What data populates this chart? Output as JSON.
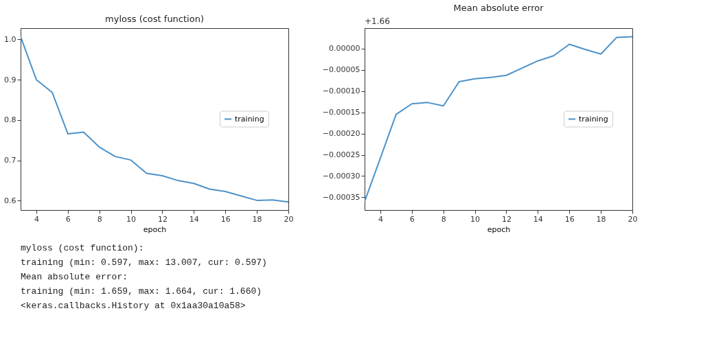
{
  "chart_data": [
    {
      "type": "line",
      "title": "myloss (cost function)",
      "xlabel": "epoch",
      "x": [
        3,
        4,
        5,
        6,
        7,
        8,
        9,
        10,
        11,
        12,
        13,
        14,
        15,
        16,
        17,
        18,
        19,
        20
      ],
      "series": [
        {
          "name": "training",
          "color": "#4c92c9",
          "values": [
            1.007,
            0.9,
            0.869,
            0.766,
            0.77,
            0.733,
            0.71,
            0.701,
            0.668,
            0.662,
            0.65,
            0.643,
            0.629,
            0.623,
            0.612,
            0.601,
            0.602,
            0.597
          ]
        }
      ],
      "xlim": [
        3,
        20
      ],
      "xticks": [
        4,
        6,
        8,
        10,
        12,
        14,
        16,
        18,
        20
      ],
      "ylim": [
        0.577,
        1.028
      ],
      "yticks": [
        {
          "value": 0.6,
          "label": "0.6"
        },
        {
          "value": 0.7,
          "label": "0.7"
        },
        {
          "value": 0.8,
          "label": "0.8"
        },
        {
          "value": 0.9,
          "label": "0.9"
        },
        {
          "value": 1.0,
          "label": "1.0"
        }
      ],
      "grid": false,
      "legend": "right",
      "line_style": "solid",
      "marker": "none"
    },
    {
      "type": "line",
      "title": "Mean absolute error",
      "xlabel": "epoch",
      "annotations": [
        "+1.66"
      ],
      "x": [
        3,
        4,
        5,
        6,
        7,
        8,
        9,
        10,
        11,
        12,
        13,
        14,
        15,
        16,
        17,
        18,
        19,
        20
      ],
      "series": [
        {
          "name": "training",
          "color": "#4c92c9",
          "values": [
            -0.00036,
            -0.000258,
            -0.000155,
            -0.00013,
            -0.000127,
            -0.000135,
            -7.8e-05,
            -7.1e-05,
            -6.8e-05,
            -6.3e-05,
            -4.6e-05,
            -2.9e-05,
            -1.7e-05,
            1e-05,
            -2e-06,
            -1.3e-05,
            2.6e-05,
            2.8e-05
          ]
        }
      ],
      "xlim": [
        3,
        20
      ],
      "xticks": [
        4,
        6,
        8,
        10,
        12,
        14,
        16,
        18,
        20
      ],
      "ylim": [
        -0.00038,
        4.8e-05
      ],
      "yticks": [
        {
          "value": -0.00035,
          "label": "−0.00035"
        },
        {
          "value": -0.0003,
          "label": "−0.00030"
        },
        {
          "value": -0.00025,
          "label": "−0.00025"
        },
        {
          "value": -0.0002,
          "label": "−0.00020"
        },
        {
          "value": -0.00015,
          "label": "−0.00015"
        },
        {
          "value": -0.0001,
          "label": "−0.00010"
        },
        {
          "value": -5e-05,
          "label": "−0.00005"
        },
        {
          "value": 0,
          "label": "0.00000"
        }
      ],
      "grid": false,
      "legend": "right",
      "line_style": "solid",
      "marker": "none"
    },
    {
      "type": "other",
      "annotations": [
        "myloss (cost function):",
        "training   (min:    0.597, max:   13.007, cur:    0.597)",
        "Mean absolute error:",
        "training   (min:    1.659, max:    1.664, cur:    1.660)",
        "<keras.callbacks.History at 0x1aa30a10a58>"
      ]
    }
  ]
}
